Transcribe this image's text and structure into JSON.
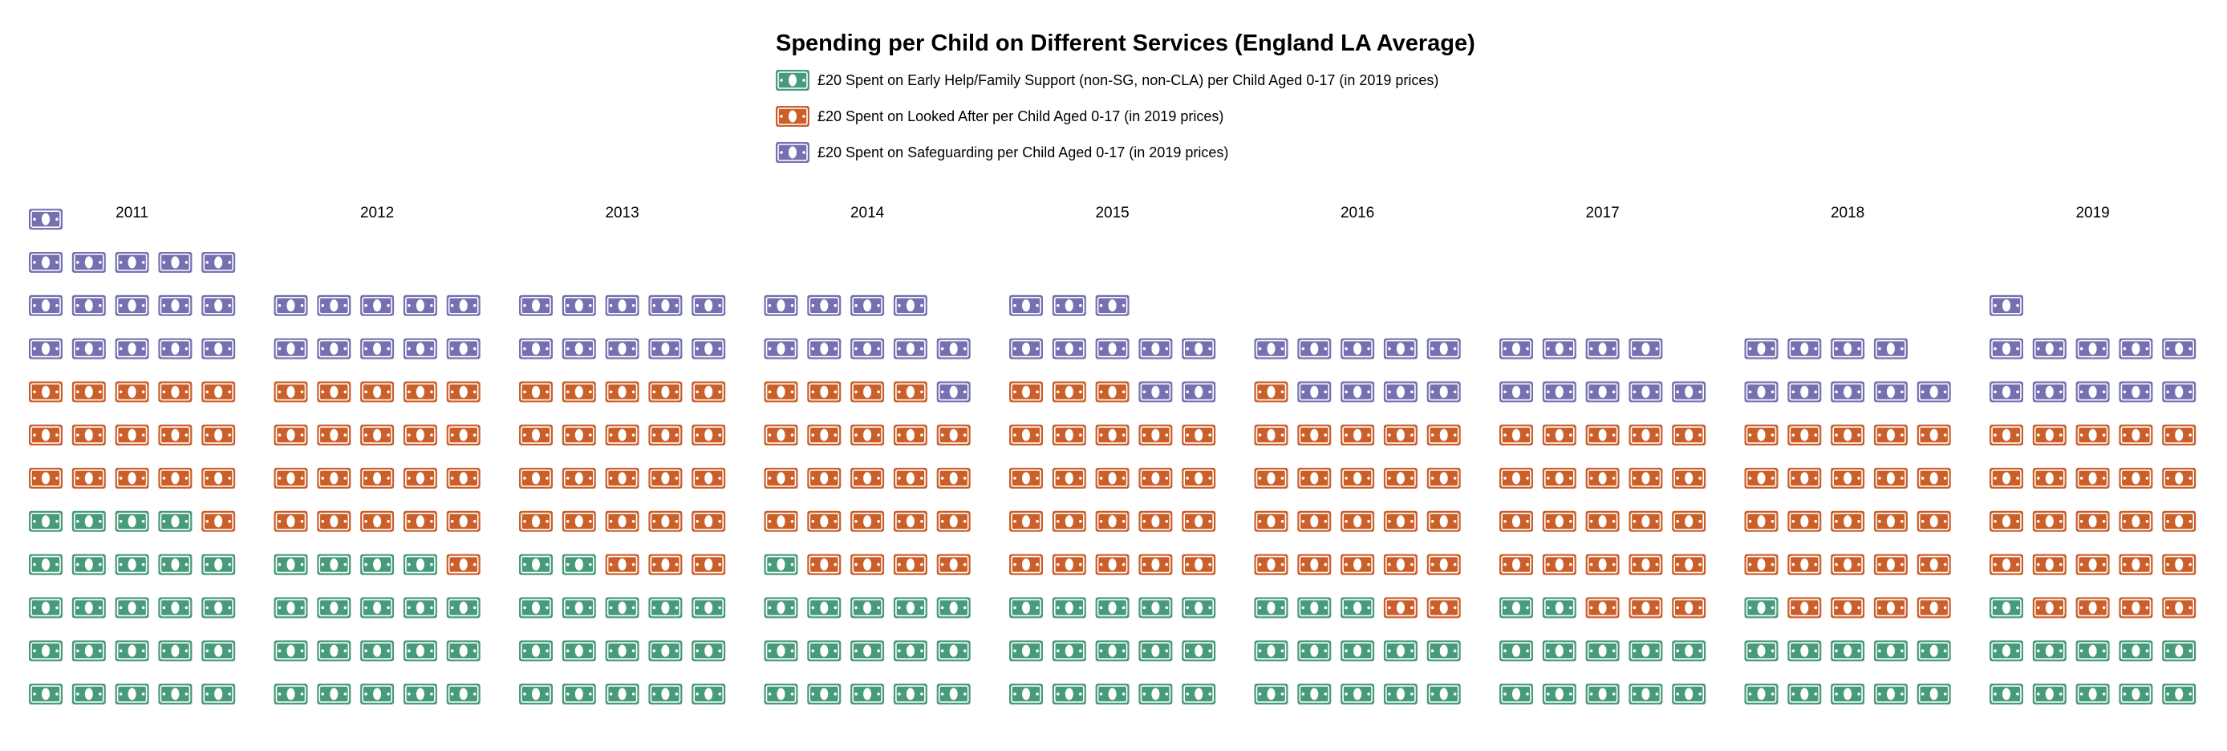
{
  "chart_data": {
    "type": "waffle",
    "title": "Spending per Child on Different Services (England LA Average)",
    "unit_value": 20,
    "columns_per_year": 5,
    "categories": [
      "2011",
      "2012",
      "2013",
      "2014",
      "2015",
      "2016",
      "2017",
      "2018",
      "2019"
    ],
    "series": [
      {
        "name": "£20 Spent on Early Help/Family Support (non-SG, non-CLA) per Child Aged 0-17 (in 2019 prices)",
        "color": "#479a7a",
        "values": [
          24,
          19,
          17,
          16,
          15,
          13,
          12,
          11,
          11
        ]
      },
      {
        "name": "£20 Spent on Looked After per Child Aged 0-17 (in 2019 prices)",
        "color": "#cb5f2a",
        "values": [
          16,
          21,
          23,
          23,
          23,
          23,
          23,
          24,
          24
        ]
      },
      {
        "name": "£20 Spent on Safeguarding per Child Aged 0-17 (in 2019 prices)",
        "color": "#7571b1",
        "values": [
          16,
          10,
          10,
          10,
          10,
          9,
          9,
          9,
          11
        ]
      }
    ]
  }
}
